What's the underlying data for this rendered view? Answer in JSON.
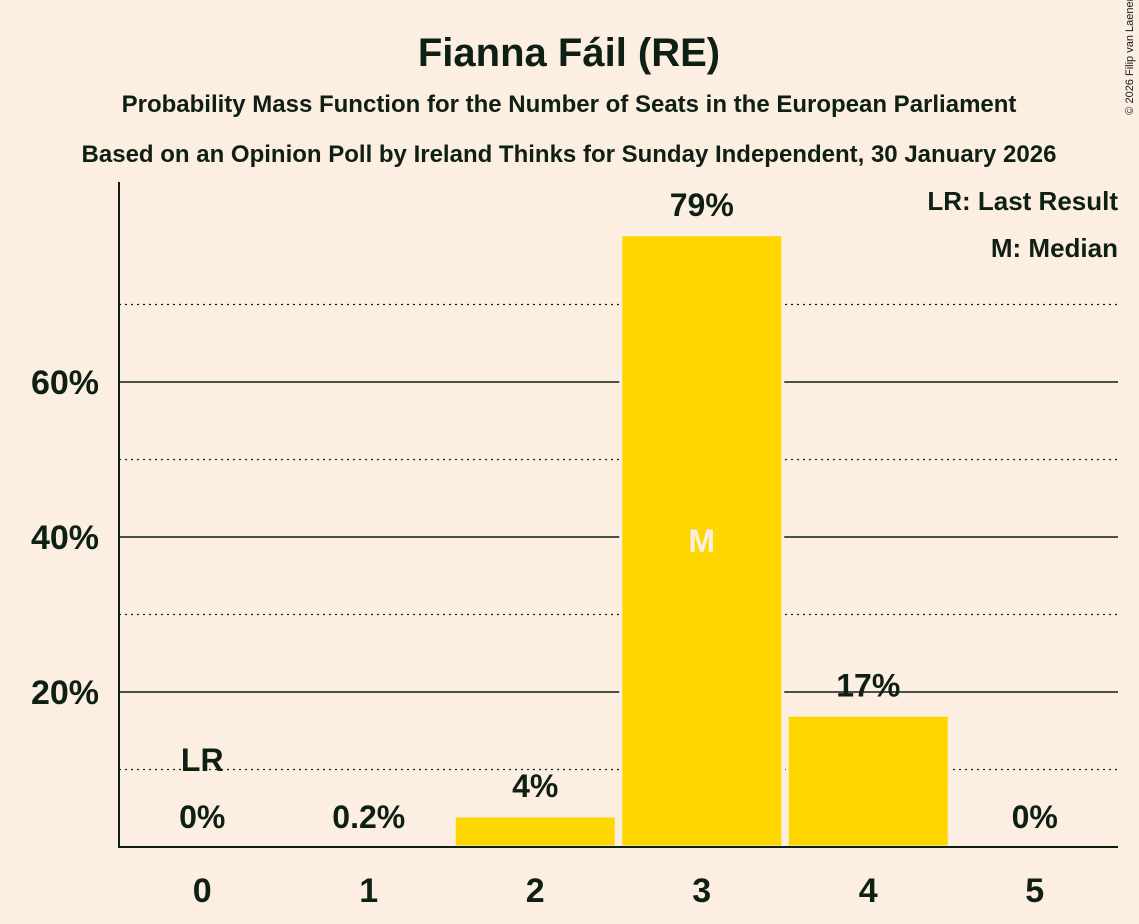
{
  "chart_data": {
    "type": "bar",
    "title": "Fianna Fáil (RE)",
    "subtitle_1": "Probability Mass Function for the Number of Seats in the European Parliament",
    "subtitle_2": "Based on an Opinion Poll by Ireland Thinks for Sunday Independent, 30 January 2026",
    "categories": [
      "0",
      "1",
      "2",
      "3",
      "4",
      "5"
    ],
    "values": [
      0,
      0.2,
      4,
      79,
      17,
      0
    ],
    "value_labels": [
      "0%",
      "0.2%",
      "4%",
      "79%",
      "17%",
      "0%"
    ],
    "ylim": [
      0,
      86
    ],
    "y_ticks": [
      20,
      40,
      60
    ],
    "y_tick_labels": [
      "20%",
      "40%",
      "60%"
    ],
    "y_minor_gridlines": [
      10,
      30,
      50,
      70
    ],
    "last_result_index": 0,
    "last_result_label": "LR",
    "median_index": 3,
    "median_label": "M",
    "legend": {
      "last_result": "LR: Last Result",
      "median": "M: Median"
    },
    "copyright": "© 2026 Filip van Laenen"
  },
  "colors": {
    "background": "#FDEEE2",
    "bar": "#FFD700",
    "text": "#0E1F14",
    "median_text": "#FDEEE2"
  }
}
